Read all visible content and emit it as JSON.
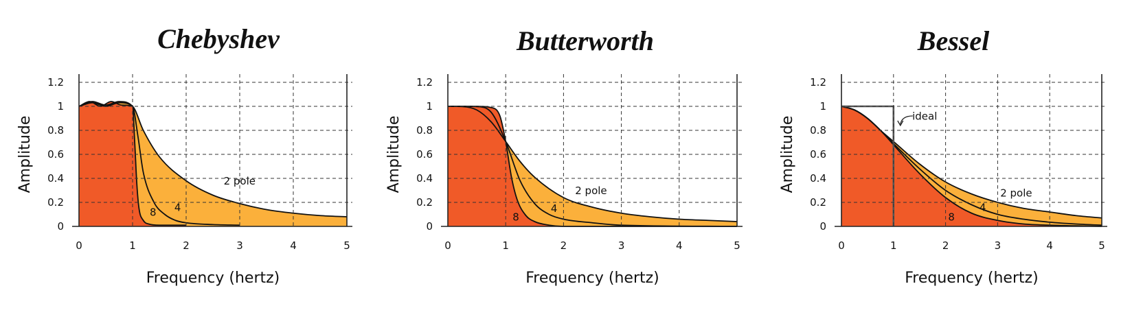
{
  "colors": {
    "low_order_fill": "#fbb03b",
    "high_order_fill": "#f05a28",
    "ideal_line": "#555555"
  },
  "chart_data": [
    {
      "type": "line",
      "title": "Chebyshev",
      "xlabel": "Frequency (hertz)",
      "ylabel": "Amplitude",
      "xlim": [
        0,
        5
      ],
      "ylim": [
        0,
        1.2
      ],
      "x_ticks": [
        "0",
        "1",
        "2",
        "3",
        "4",
        "5"
      ],
      "y_ticks": [
        "0",
        "0.2",
        "0.4",
        "0.6",
        "0.8",
        "1",
        "1.2"
      ],
      "grid": true,
      "annotations": [
        {
          "text": "2 pole",
          "x": 2.7,
          "y": 0.35
        },
        {
          "text": "4",
          "x": 1.78,
          "y": 0.13
        },
        {
          "text": "8",
          "x": 1.32,
          "y": 0.09
        }
      ],
      "series": [
        {
          "name": "2 pole",
          "x": [
            0,
            0.25,
            0.5,
            0.75,
            1.0,
            1.2,
            1.5,
            2.0,
            2.5,
            3.0,
            3.5,
            4.0,
            4.5,
            5.0
          ],
          "y": [
            1.0,
            1.03,
            1.0,
            1.03,
            1.0,
            0.8,
            0.58,
            0.38,
            0.26,
            0.19,
            0.14,
            0.11,
            0.09,
            0.08
          ]
        },
        {
          "name": "4",
          "x": [
            0,
            0.25,
            0.5,
            0.75,
            1.0,
            1.1,
            1.2,
            1.4,
            1.6,
            1.8,
            2.0,
            2.5,
            3.0
          ],
          "y": [
            1.0,
            1.04,
            1.01,
            1.04,
            1.0,
            0.75,
            0.45,
            0.2,
            0.1,
            0.05,
            0.03,
            0.015,
            0.01
          ]
        },
        {
          "name": "8",
          "x": [
            0,
            0.2,
            0.4,
            0.6,
            0.8,
            1.0,
            1.04,
            1.08,
            1.12,
            1.2,
            1.3,
            1.5,
            2.0
          ],
          "y": [
            1.0,
            1.04,
            1.0,
            1.04,
            1.01,
            1.0,
            0.7,
            0.35,
            0.15,
            0.05,
            0.02,
            0.01,
            0.01
          ]
        }
      ]
    },
    {
      "type": "line",
      "title": "Butterworth",
      "xlabel": "Frequency (hertz)",
      "ylabel": "Amplitude",
      "xlim": [
        0,
        5
      ],
      "ylim": [
        0,
        1.2
      ],
      "x_ticks": [
        "0",
        "1",
        "2",
        "3",
        "4",
        "5"
      ],
      "y_ticks": [
        "0",
        "0.2",
        "0.4",
        "0.6",
        "0.8",
        "1",
        "1.2"
      ],
      "grid": true,
      "annotations": [
        {
          "text": "2 pole",
          "x": 2.2,
          "y": 0.27
        },
        {
          "text": "4",
          "x": 1.78,
          "y": 0.12
        },
        {
          "text": "8",
          "x": 1.12,
          "y": 0.05
        }
      ],
      "series": [
        {
          "name": "2 pole",
          "x": [
            0,
            0.25,
            0.5,
            0.75,
            1.0,
            1.25,
            1.5,
            2.0,
            2.5,
            3.0,
            3.5,
            4.0,
            4.5,
            5.0
          ],
          "y": [
            1.0,
            0.998,
            0.97,
            0.87,
            0.707,
            0.54,
            0.41,
            0.24,
            0.16,
            0.11,
            0.08,
            0.06,
            0.05,
            0.04
          ]
        },
        {
          "name": "4",
          "x": [
            0,
            0.25,
            0.5,
            0.75,
            1.0,
            1.25,
            1.5,
            1.75,
            2.0,
            2.5,
            3.0,
            5.0
          ],
          "y": [
            1.0,
            1.0,
            0.998,
            0.95,
            0.707,
            0.38,
            0.19,
            0.1,
            0.06,
            0.03,
            0.01,
            0.0
          ]
        },
        {
          "name": "8",
          "x": [
            0,
            0.5,
            0.75,
            0.9,
            1.0,
            1.1,
            1.2,
            1.35,
            1.5,
            1.75,
            2.0,
            5.0
          ],
          "y": [
            1.0,
            1.0,
            0.99,
            0.92,
            0.707,
            0.41,
            0.22,
            0.09,
            0.04,
            0.01,
            0.0,
            0.0
          ]
        }
      ]
    },
    {
      "type": "line",
      "title": "Bessel",
      "xlabel": "Frequency (hertz)",
      "ylabel": "Amplitude",
      "xlim": [
        0,
        5
      ],
      "ylim": [
        0,
        1.2
      ],
      "x_ticks": [
        "0",
        "1",
        "2",
        "3",
        "4",
        "5"
      ],
      "y_ticks": [
        "0",
        "0.2",
        "0.4",
        "0.6",
        "0.8",
        "1",
        "1.2"
      ],
      "grid": true,
      "annotations": [
        {
          "text": "ideal",
          "x": 1.36,
          "y": 0.89
        },
        {
          "text": "2 pole",
          "x": 3.05,
          "y": 0.25
        },
        {
          "text": "4",
          "x": 2.65,
          "y": 0.13
        },
        {
          "text": "8",
          "x": 2.05,
          "y": 0.05
        }
      ],
      "ideal": {
        "x": [
          0,
          1,
          1
        ],
        "y": [
          1,
          1,
          0
        ]
      },
      "series": [
        {
          "name": "2 pole",
          "x": [
            0,
            0.25,
            0.5,
            0.75,
            1.0,
            1.5,
            2.0,
            2.5,
            3.0,
            3.5,
            4.0,
            4.5,
            5.0
          ],
          "y": [
            1.0,
            0.97,
            0.9,
            0.8,
            0.707,
            0.52,
            0.37,
            0.27,
            0.2,
            0.15,
            0.12,
            0.09,
            0.07
          ]
        },
        {
          "name": "4",
          "x": [
            0,
            0.25,
            0.5,
            0.75,
            1.0,
            1.5,
            2.0,
            2.5,
            3.0,
            3.5,
            4.0,
            4.5,
            5.0
          ],
          "y": [
            1.0,
            0.97,
            0.9,
            0.8,
            0.69,
            0.48,
            0.3,
            0.18,
            0.1,
            0.06,
            0.035,
            0.02,
            0.01
          ]
        },
        {
          "name": "8",
          "x": [
            0,
            0.25,
            0.5,
            0.75,
            1.0,
            1.5,
            2.0,
            2.5,
            3.0,
            3.5,
            4.0,
            4.5,
            5.0
          ],
          "y": [
            1.0,
            0.97,
            0.9,
            0.8,
            0.68,
            0.44,
            0.24,
            0.11,
            0.05,
            0.02,
            0.01,
            0.005,
            0.0
          ]
        }
      ]
    }
  ]
}
